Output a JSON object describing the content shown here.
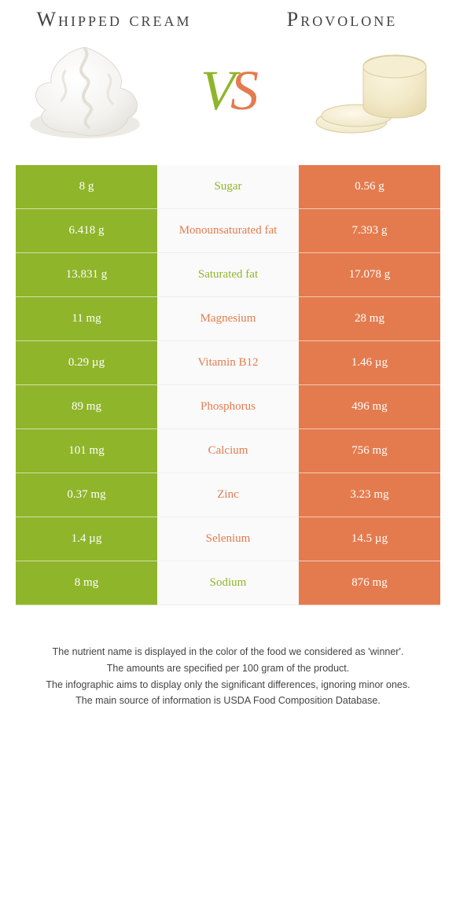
{
  "colors": {
    "green": "#8fb52b",
    "orange": "#e47b4e",
    "vs_v": "#8fb52b",
    "vs_s": "#e47b4e"
  },
  "left": {
    "title": "Whipped cream"
  },
  "right": {
    "title": "Provolone"
  },
  "vs": {
    "v": "V",
    "s": "S"
  },
  "rows": [
    {
      "nutrient": "Sugar",
      "left": "8 g",
      "right": "0.56 g",
      "winner": "left"
    },
    {
      "nutrient": "Monounsaturated fat",
      "left": "6.418 g",
      "right": "7.393 g",
      "winner": "right"
    },
    {
      "nutrient": "Saturated fat",
      "left": "13.831 g",
      "right": "17.078 g",
      "winner": "left"
    },
    {
      "nutrient": "Magnesium",
      "left": "11 mg",
      "right": "28 mg",
      "winner": "right"
    },
    {
      "nutrient": "Vitamin B12",
      "left": "0.29 µg",
      "right": "1.46 µg",
      "winner": "right"
    },
    {
      "nutrient": "Phosphorus",
      "left": "89 mg",
      "right": "496 mg",
      "winner": "right"
    },
    {
      "nutrient": "Calcium",
      "left": "101 mg",
      "right": "756 mg",
      "winner": "right"
    },
    {
      "nutrient": "Zinc",
      "left": "0.37 mg",
      "right": "3.23 mg",
      "winner": "right"
    },
    {
      "nutrient": "Selenium",
      "left": "1.4 µg",
      "right": "14.5 µg",
      "winner": "right"
    },
    {
      "nutrient": "Sodium",
      "left": "8 mg",
      "right": "876 mg",
      "winner": "left"
    }
  ],
  "notes": [
    "The nutrient name is displayed in the color of the food we considered as 'winner'.",
    "The amounts are specified per 100 gram of the product.",
    "The infographic aims to display only the significant differences, ignoring minor ones.",
    "The main source of information is USDA Food Composition Database."
  ]
}
